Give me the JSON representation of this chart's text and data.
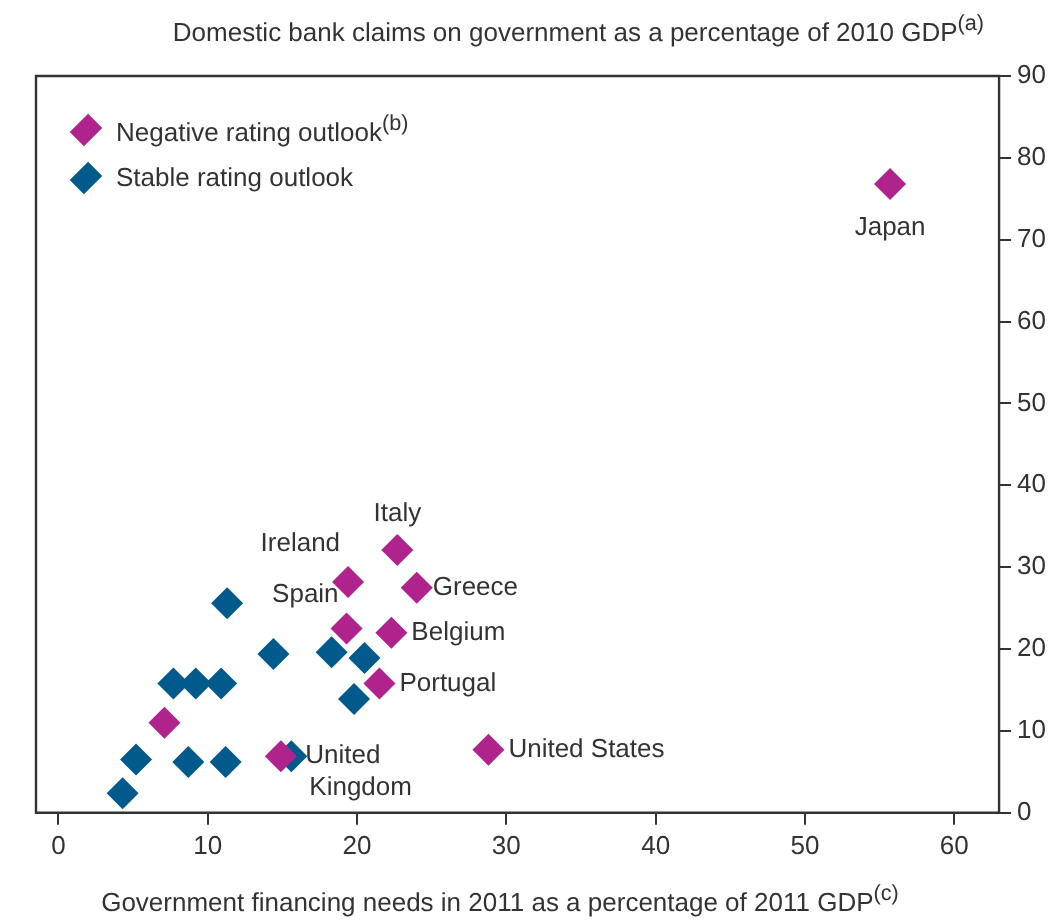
{
  "chart_data": {
    "type": "scatter",
    "ylabel": "Domestic bank claims on government as a percentage of 2010 GDP$^{(a)}$",
    "xlabel": "Government financing needs in 2011 as a percentage of 2011 GDP$^{(c)}$",
    "xlim": [
      -1.5,
      63
    ],
    "xticks": [
      0,
      10,
      20,
      30,
      40,
      50,
      60
    ],
    "ylim": [
      0,
      90
    ],
    "yticks": [
      0,
      10,
      20,
      30,
      40,
      50,
      60,
      70,
      80,
      90
    ],
    "grid": false,
    "legend": "top left",
    "marker": "diamond",
    "series": [
      {
        "name": "Negative rating outlook$^{(b)}$",
        "color": "#b0238c",
        "x": [
          55.7,
          22.7,
          19.4,
          24.0,
          19.3,
          22.3,
          21.5,
          28.8,
          14.9,
          7.1
        ],
        "values": [
          76.8,
          32.1,
          28.2,
          27.5,
          22.5,
          22.0,
          15.8,
          7.7,
          6.9,
          11.0
        ]
      },
      {
        "name": "Stable rating outlook",
        "color": "#005a8c",
        "x": [
          11.3,
          14.4,
          18.3,
          20.5,
          7.7,
          9.2,
          10.9,
          19.8,
          5.2,
          8.7,
          11.2,
          15.6,
          4.3
        ],
        "values": [
          25.6,
          19.4,
          19.6,
          18.9,
          15.8,
          15.8,
          15.8,
          13.9,
          6.5,
          6.2,
          6.2,
          6.9,
          2.4
        ]
      }
    ],
    "annotations": [
      {
        "text": "Japan",
        "x": 55.7,
        "y": 76.8
      },
      {
        "text": "Italy",
        "x": 22.7,
        "y": 32.1
      },
      {
        "text": "Ireland",
        "x": 19.4,
        "y": 28.2
      },
      {
        "text": "Greece",
        "x": 24.0,
        "y": 27.5
      },
      {
        "text": "Spain",
        "x": 19.3,
        "y": 22.5
      },
      {
        "text": "Belgium",
        "x": 22.3,
        "y": 22.0
      },
      {
        "text": "Portugal",
        "x": 21.5,
        "y": 15.8
      },
      {
        "text": "United States",
        "x": 28.8,
        "y": 7.7
      },
      {
        "text": "United Kingdom",
        "x": 15.6,
        "y": 6.9
      }
    ]
  }
}
